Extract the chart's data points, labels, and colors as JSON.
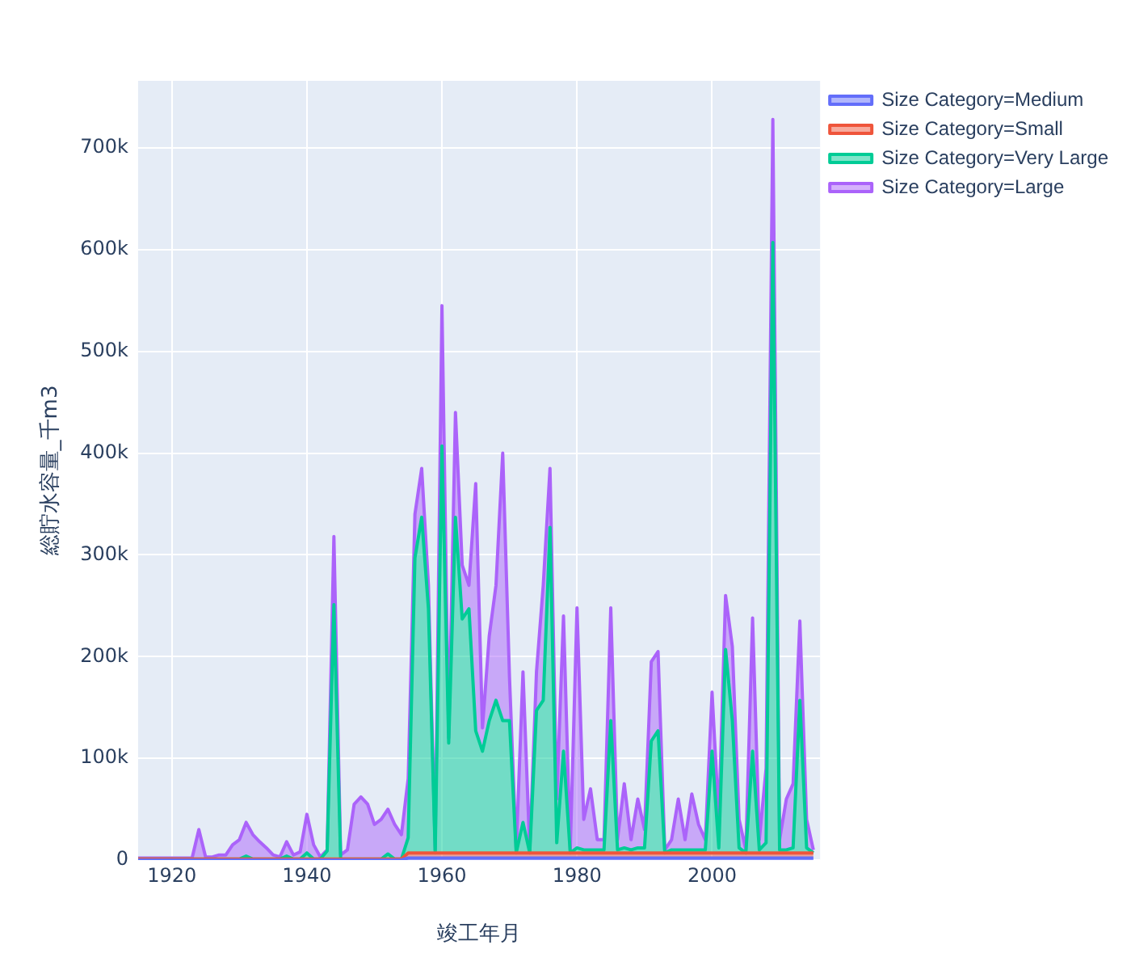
{
  "chart_data": {
    "type": "area",
    "stacked": true,
    "xlabel": "竣工年月",
    "ylabel": "総貯水容量_千m3",
    "x": [
      1915,
      1916,
      1917,
      1918,
      1919,
      1920,
      1921,
      1922,
      1923,
      1924,
      1925,
      1926,
      1927,
      1928,
      1929,
      1930,
      1931,
      1932,
      1933,
      1934,
      1935,
      1936,
      1937,
      1938,
      1939,
      1940,
      1941,
      1942,
      1943,
      1944,
      1945,
      1946,
      1947,
      1948,
      1949,
      1950,
      1951,
      1952,
      1953,
      1954,
      1955,
      1956,
      1957,
      1958,
      1959,
      1960,
      1961,
      1962,
      1963,
      1964,
      1965,
      1966,
      1967,
      1968,
      1969,
      1970,
      1971,
      1972,
      1973,
      1974,
      1975,
      1976,
      1977,
      1978,
      1979,
      1980,
      1981,
      1982,
      1983,
      1984,
      1985,
      1986,
      1987,
      1988,
      1989,
      1990,
      1991,
      1992,
      1993,
      1994,
      1995,
      1996,
      1997,
      1998,
      1999,
      2000,
      2001,
      2002,
      2003,
      2004,
      2005,
      2006,
      2007,
      2008,
      2009,
      2010,
      2011,
      2012,
      2013,
      2014,
      2015
    ],
    "series": [
      {
        "name": "Size Category=Medium",
        "color": "#636efa",
        "values": [
          0,
          0,
          0,
          0,
          0,
          0,
          0,
          0,
          0,
          0,
          0,
          0,
          0,
          0,
          0,
          0,
          0,
          0,
          0,
          0,
          0,
          0,
          0,
          0,
          0,
          0,
          0,
          0,
          0,
          0,
          0,
          0,
          0,
          0,
          0,
          0,
          0,
          0,
          0,
          0,
          2000,
          2000,
          2000,
          2000,
          2000,
          2000,
          2000,
          2000,
          2000,
          2000,
          2000,
          2000,
          2000,
          2000,
          2000,
          2000,
          2000,
          2000,
          2000,
          2000,
          2000,
          2000,
          2000,
          2000,
          2000,
          2000,
          2000,
          2000,
          2000,
          2000,
          2000,
          2000,
          2000,
          2000,
          2000,
          2000,
          2000,
          2000,
          2000,
          2000,
          2000,
          2000,
          2000,
          2000,
          2000,
          2000,
          2000,
          2000,
          2000,
          2000,
          2000,
          2000,
          2000,
          2000,
          2000,
          2000,
          2000,
          2000,
          2000,
          2000,
          2000
        ]
      },
      {
        "name": "Size Category=Small",
        "color": "#ef553b",
        "values": [
          1000,
          1000,
          1000,
          1000,
          1000,
          1000,
          1000,
          1000,
          1000,
          1000,
          1000,
          1000,
          1000,
          1000,
          1000,
          1000,
          1000,
          1000,
          1000,
          1000,
          1000,
          1000,
          1000,
          1000,
          1000,
          1000,
          1000,
          1000,
          1000,
          1000,
          1000,
          1000,
          1000,
          1000,
          1000,
          1000,
          1000,
          1000,
          1000,
          1000,
          5000,
          5000,
          5000,
          5000,
          5000,
          5000,
          5000,
          5000,
          5000,
          5000,
          5000,
          5000,
          5000,
          5000,
          5000,
          5000,
          5000,
          5000,
          5000,
          5000,
          5000,
          5000,
          5000,
          5000,
          5000,
          5000,
          5000,
          5000,
          5000,
          5000,
          5000,
          5000,
          5000,
          5000,
          5000,
          5000,
          5000,
          5000,
          5000,
          5000,
          5000,
          5000,
          5000,
          5000,
          5000,
          5000,
          5000,
          5000,
          5000,
          5000,
          5000,
          5000,
          5000,
          5000,
          5000,
          5000,
          5000,
          5000,
          5000,
          5000,
          5000
        ]
      },
      {
        "name": "Size Category=Very Large",
        "color": "#00cc96",
        "values": [
          0,
          0,
          0,
          0,
          0,
          0,
          0,
          0,
          0,
          0,
          0,
          0,
          0,
          0,
          0,
          0,
          3000,
          0,
          0,
          0,
          0,
          0,
          3000,
          0,
          0,
          6000,
          0,
          0,
          8000,
          250000,
          0,
          0,
          0,
          0,
          0,
          0,
          0,
          5000,
          0,
          0,
          15000,
          290000,
          330000,
          240000,
          0,
          400000,
          108000,
          330000,
          230000,
          240000,
          120000,
          100000,
          130000,
          150000,
          130000,
          130000,
          0,
          30000,
          0,
          140000,
          150000,
          320000,
          10000,
          100000,
          0,
          5000,
          3000,
          3000,
          3000,
          3000,
          130000,
          3000,
          5000,
          3000,
          5000,
          5000,
          110000,
          120000,
          0,
          3000,
          3000,
          3000,
          3000,
          3000,
          3000,
          100000,
          5000,
          200000,
          130000,
          5000,
          0,
          100000,
          3000,
          10000,
          600000,
          3000,
          3000,
          5000,
          150000,
          5000,
          0
        ]
      },
      {
        "name": "Size Category=Large",
        "color": "#ab63fa",
        "values": [
          1000,
          1000,
          1000,
          1000,
          1000,
          1000,
          1000,
          1000,
          1000,
          29000,
          2000,
          2000,
          4000,
          4000,
          14000,
          19000,
          33000,
          24000,
          17000,
          11000,
          4000,
          2000,
          14000,
          4000,
          7000,
          38000,
          14000,
          2000,
          1000,
          67000,
          4000,
          9000,
          54000,
          61000,
          54000,
          34000,
          39000,
          44000,
          34000,
          24000,
          58000,
          43000,
          48000,
          23000,
          3000,
          138000,
          5000,
          103000,
          53000,
          23000,
          243000,
          23000,
          83000,
          113000,
          263000,
          43000,
          3000,
          148000,
          3000,
          38000,
          113000,
          58000,
          43000,
          133000,
          3000,
          236000,
          30000,
          60000,
          10000,
          10000,
          111000,
          10000,
          63000,
          10000,
          48000,
          18000,
          78000,
          78000,
          3000,
          10000,
          50000,
          10000,
          55000,
          25000,
          10000,
          58000,
          28000,
          53000,
          73000,
          28000,
          3000,
          131000,
          10000,
          73000,
          121000,
          10000,
          50000,
          63000,
          78000,
          28000,
          3000
        ]
      }
    ],
    "xlim": [
      1915,
      2016
    ],
    "xticks": [
      1920,
      1940,
      1960,
      1980,
      2000
    ],
    "ylim": [
      0,
      766000
    ],
    "yticks": [
      0,
      {
        "value": 100000,
        "label": "100k"
      },
      {
        "value": 200000,
        "label": "200k"
      },
      {
        "value": 300000,
        "label": "300k"
      },
      {
        "value": 400000,
        "label": "400k"
      },
      {
        "value": 500000,
        "label": "500k"
      },
      {
        "value": 600000,
        "label": "600k"
      },
      {
        "value": 700000,
        "label": "700k"
      }
    ],
    "grid": true,
    "legend": "top right",
    "marker": "none",
    "line_style": "solid"
  }
}
